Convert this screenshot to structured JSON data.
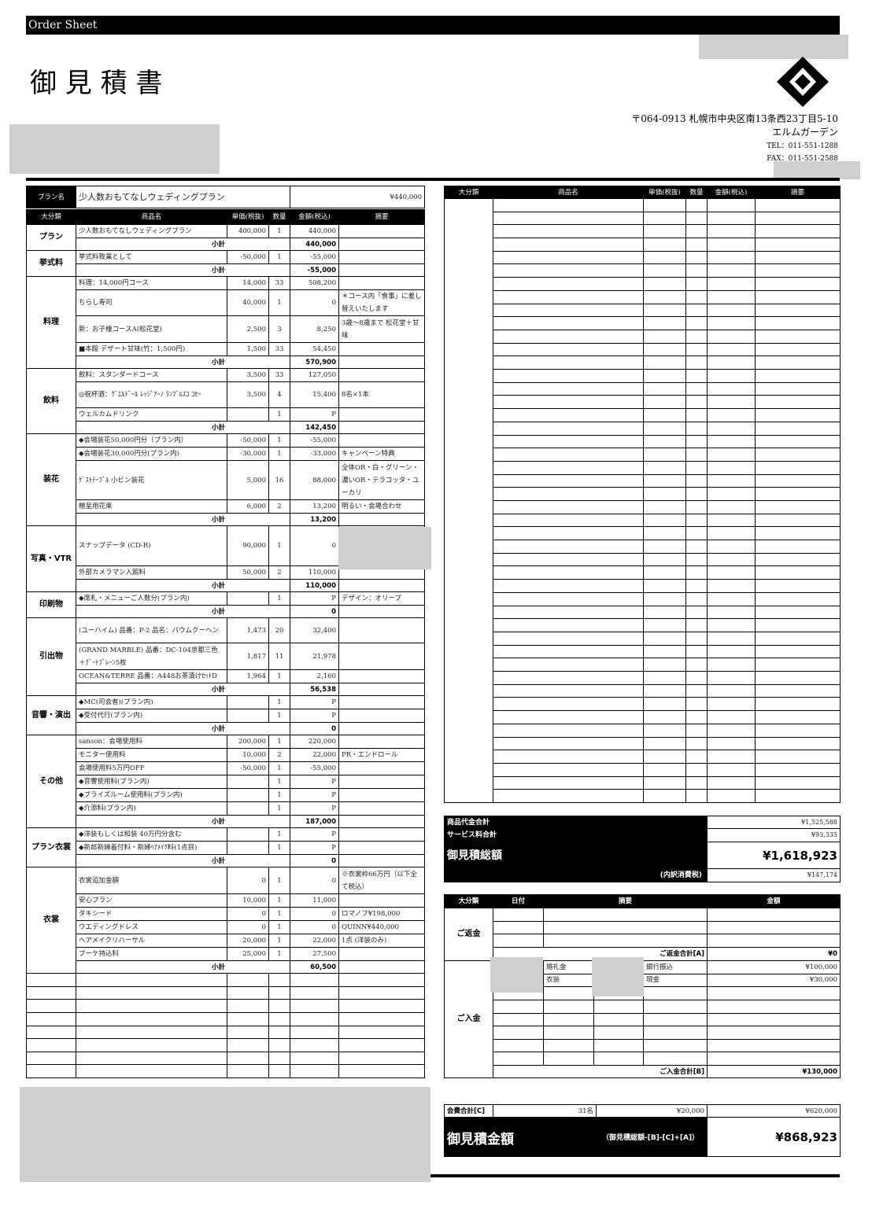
{
  "header": {
    "bar_label": "Order Sheet",
    "title": "御 見 積 書",
    "address": [
      "〒064-0913 札幌市中央区南13条西23丁目5-10",
      "エルムガーデン",
      "TEL：011-551-1288",
      "FAX：011-551-2588"
    ]
  },
  "estimate": {
    "plan_label": "プラン名",
    "plan_name": "少人数おもてなしウェディングプラン",
    "plan_price": "¥440,000",
    "columns": [
      "大分類",
      "商品名",
      "単価(税抜)",
      "数量",
      "金額(税込)",
      "摘要"
    ],
    "subtotal_label": "小計",
    "sections": [
      {
        "category": "プラン",
        "items": [
          {
            "name": "少人数おもてなしウェディングプラン",
            "price": "400,000",
            "qty": "1",
            "amount": "440,000"
          }
        ],
        "subtotal": "440,000"
      },
      {
        "category": "挙式料",
        "items": [
          {
            "name": "挙式料致業として",
            "price": "-50,000",
            "qty": "1",
            "amount": "-55,000"
          }
        ],
        "subtotal": "-55,000"
      },
      {
        "category": "料理",
        "items": [
          {
            "name": "料理：14,000円コース",
            "price": "14,000",
            "qty": "33",
            "amount": "508,200"
          },
          {
            "name": "ちらし寿司",
            "price": "40,000",
            "qty": "1",
            "amount": "0",
            "note": "＊コース内「食事」に差し替えいたします"
          },
          {
            "name": "新：お子様コースA(松花堂)",
            "price": "2,500",
            "qty": "3",
            "amount": "8,250",
            "note": "3歳～8歳まで 松花堂＋甘味"
          },
          {
            "name": "■本館 デザート甘味(竹：1,500円)",
            "price": "1,500",
            "qty": "33",
            "amount": "54,450"
          }
        ],
        "subtotal": "570,900"
      },
      {
        "category": "飲料",
        "items": [
          {
            "name": "飲料：スタンダードコース",
            "price": "3,500",
            "qty": "33",
            "amount": "127,050"
          },
          {
            "name": "◎祝杯酒：ｸﾞｴﾙﾃﾞｰﾙ ﾚｯｼﾞｱｰﾉ ﾗﾝﾌﾞﾙｽｺ ｺｾｰ",
            "price": "3,500",
            "qty": "4",
            "amount": "15,400",
            "note": "8名×1本"
          },
          {
            "name": "ウェルカムドリンク",
            "qty": "1",
            "amount": "P"
          }
        ],
        "subtotal": "142,450"
      },
      {
        "category": "装花",
        "items": [
          {
            "name": "◆会場装花50,000円分（プラン内）",
            "price": "-50,000",
            "qty": "1",
            "amount": "-55,000"
          },
          {
            "name": "◆会場装花30,000円分(プラン内)",
            "price": "-30,000",
            "qty": "1",
            "amount": "-33,000",
            "note": "キャンペーン特典"
          },
          {
            "name": "ｹﾞｽﾄﾃｰﾌﾞﾙ 小ビン装花",
            "price": "5,000",
            "qty": "16",
            "amount": "88,000",
            "note": "全体OR・白・グリーン・濃いOR・テラコッタ・ユーカリ"
          },
          {
            "name": "贈呈用花束",
            "price": "6,000",
            "qty": "2",
            "amount": "13,200",
            "note": "明るい・会場合わせ"
          }
        ],
        "subtotal": "13,200"
      },
      {
        "category": "写真・VTR",
        "items": [
          {
            "name": "スナップデータ (CD-R)",
            "price": "90,000",
            "qty": "1",
            "amount": "0"
          },
          {
            "name": "外部カメラマン入館料",
            "price": "50,000",
            "qty": "2",
            "amount": "110,000"
          }
        ],
        "subtotal": "110,000"
      },
      {
        "category": "印刷物",
        "items": [
          {
            "name": "◆席札・メニューご人数分(プラン内)",
            "qty": "1",
            "amount": "P",
            "note": "デザイン：オリーブ"
          }
        ],
        "subtotal": "0"
      },
      {
        "category": "引出物",
        "items": [
          {
            "name": "(ユーハイム) 品番：P-2 品名：バウムクーヘン",
            "price": "1,473",
            "qty": "20",
            "amount": "32,400"
          },
          {
            "name": "(GRAND MARBLE) 品番：DC-104京都三色＋ｸﾞｰﾄﾌﾞﾚｰﾝ5枚",
            "price": "1,817",
            "qty": "11",
            "amount": "21,978"
          },
          {
            "name": "OCEAN&TERRE 品番：A448お茶漬けｾｯﾄD",
            "price": "1,964",
            "qty": "1",
            "amount": "2,160"
          }
        ],
        "subtotal": "56,538"
      },
      {
        "category": "音響・演出",
        "items": [
          {
            "name": "◆MC(司会者)(プラン内)",
            "qty": "1",
            "amount": "P"
          },
          {
            "name": "◆受付代行(プラン内)",
            "qty": "1",
            "amount": "P"
          }
        ],
        "subtotal": "0"
      },
      {
        "category": "その他",
        "items": [
          {
            "name": "sanson：会場使用料",
            "price": "200,000",
            "qty": "1",
            "amount": "220,000"
          },
          {
            "name": "モニター使用料",
            "price": "10,000",
            "qty": "2",
            "amount": "22,000",
            "note": "PR・エンドロール"
          },
          {
            "name": "会場使用料5万円OFF",
            "price": "-50,000",
            "qty": "1",
            "amount": "-55,000"
          },
          {
            "name": "◆音響使用料(プラン内)",
            "qty": "1",
            "amount": "P"
          },
          {
            "name": "◆ブライズルーム使用料(プラン内)",
            "qty": "1",
            "amount": "P"
          },
          {
            "name": "◆介添料(プラン内)",
            "qty": "1",
            "amount": "P"
          }
        ],
        "subtotal": "187,000"
      },
      {
        "category": "プラン衣裳",
        "items": [
          {
            "name": "◆洋装もしくは和装 40万円分含む",
            "qty": "1",
            "amount": "P"
          },
          {
            "name": "◆新郎新婦着付料・新婦ﾍｱﾒｲｸ料(1点目)",
            "qty": "1",
            "amount": "P"
          }
        ],
        "subtotal": "0"
      },
      {
        "category": "衣裳",
        "items": [
          {
            "name": "衣裳追加金額",
            "price": "0",
            "qty": "1",
            "amount": "0",
            "note": "※衣裳枠66万円（以下全て税込）"
          },
          {
            "name": "安心プラン",
            "price": "10,000",
            "qty": "1",
            "amount": "11,000"
          },
          {
            "name": "タキシード",
            "price": "0",
            "qty": "1",
            "amount": "0",
            "note": "ロマノフ¥198,000"
          },
          {
            "name": "ウエディングドレス",
            "price": "0",
            "qty": "1",
            "amount": "0",
            "note": "QUINN¥440,000"
          },
          {
            "name": "ヘアメイクリハーサル",
            "price": "20,000",
            "qty": "1",
            "amount": "22,000",
            "note": "1点 (洋装のみ)"
          },
          {
            "name": "ブーケ持込料",
            "price": "25,000",
            "qty": "1",
            "amount": "27,500"
          }
        ],
        "subtotal": "60,500"
      }
    ]
  },
  "summary": [
    {
      "label": "商品代金合計",
      "value": "¥1,525,588"
    },
    {
      "label": "サービス料合計",
      "value": "¥93,335"
    },
    {
      "label": "御見積総額",
      "value": "¥1,618,923"
    },
    {
      "label": "(内訳消費税)",
      "value": "¥147,174"
    }
  ],
  "payments": {
    "columns": [
      "大分類",
      "日付",
      "摘要",
      "金額"
    ],
    "refund": {
      "category": "ご返金",
      "total_label": "ご返金合計[A]",
      "total": "¥0"
    },
    "deposit": {
      "category": "ご入金",
      "entries": [
        {
          "item": "婚礼金",
          "method": "銀行振込",
          "amount": "¥100,000"
        },
        {
          "item": "衣装",
          "method": "現金",
          "amount": "¥30,000"
        }
      ],
      "total_label": "ご入金合計[B]",
      "total": "¥130,000"
    }
  },
  "fee": {
    "label": "会費合計[C]",
    "count": "31名",
    "unit": "¥20,000",
    "total": "¥620,000"
  },
  "final": {
    "label": "御見積金額",
    "formula": "（御見積総額-[B]-[C]+[A]）",
    "value": "¥868,923"
  }
}
